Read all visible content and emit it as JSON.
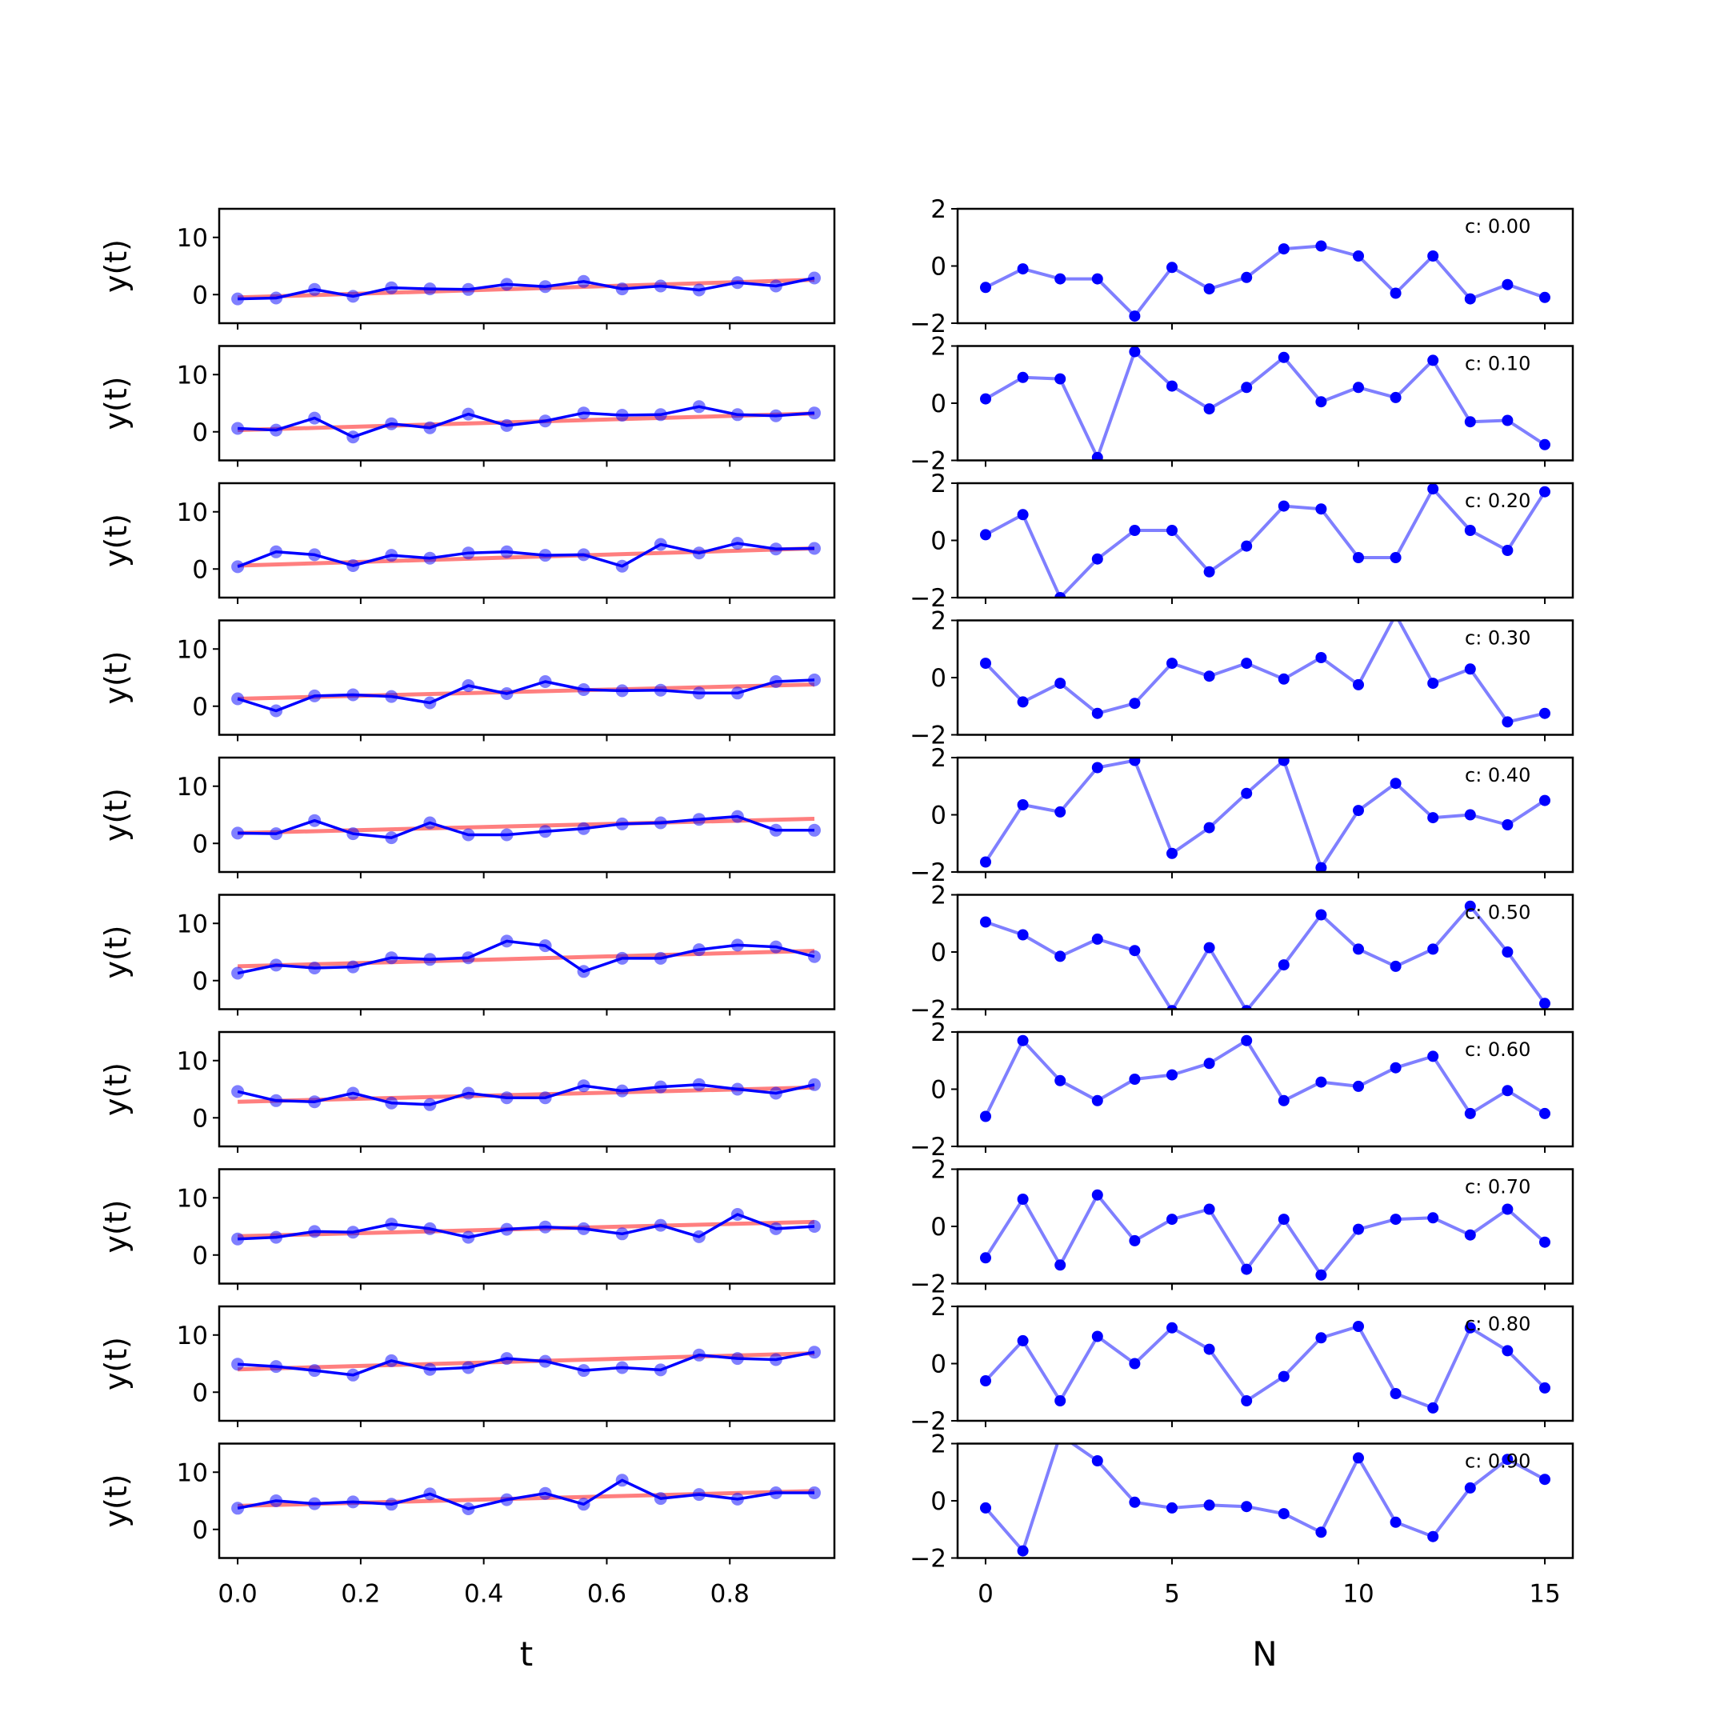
{
  "chart_data": [
    {
      "type": "line",
      "panel": "left",
      "xlabel": "t",
      "ylabel": "y(t)",
      "xlim": [
        -0.03,
        0.97
      ],
      "ylim": [
        -5,
        15
      ],
      "xticks": [
        0.0,
        0.2,
        0.4,
        0.6,
        0.8
      ],
      "xtick_labels": [
        "0.0",
        "0.2",
        "0.4",
        "0.6",
        "0.8"
      ],
      "yticks": [
        0,
        10
      ],
      "ytick_labels": [
        "0",
        "10"
      ],
      "x": [
        0.0,
        0.0625,
        0.125,
        0.1875,
        0.25,
        0.3125,
        0.375,
        0.4375,
        0.5,
        0.5625,
        0.625,
        0.6875,
        0.75,
        0.8125,
        0.875,
        0.9375
      ],
      "colors": {
        "data": "#0000ff",
        "fit": "#ff0000"
      },
      "series": [
        {
          "data": [
            -0.75,
            -0.6,
            0.9,
            -0.3,
            1.2,
            1.0,
            0.9,
            1.8,
            1.4,
            2.3,
            1.0,
            1.5,
            0.8,
            2.1,
            1.5,
            2.9
          ],
          "fit": [
            -0.5,
            2.6
          ]
        },
        {
          "data": [
            0.6,
            0.3,
            2.4,
            -0.9,
            1.4,
            0.7,
            3.1,
            1.1,
            1.9,
            3.3,
            2.9,
            3.0,
            4.4,
            3.0,
            2.8,
            3.3
          ],
          "fit": [
            0.3,
            3.2
          ]
        },
        {
          "data": [
            0.4,
            3.0,
            2.5,
            0.6,
            2.4,
            1.9,
            2.8,
            3.0,
            2.4,
            2.5,
            0.5,
            4.3,
            2.8,
            4.5,
            3.5,
            3.6
          ],
          "fit": [
            0.6,
            3.6
          ]
        },
        {
          "data": [
            1.3,
            -0.8,
            1.8,
            2.0,
            1.7,
            0.6,
            3.6,
            2.2,
            4.3,
            2.9,
            2.7,
            2.8,
            2.3,
            2.3,
            4.3,
            4.6
          ],
          "fit": [
            1.3,
            3.8
          ]
        },
        {
          "data": [
            1.8,
            1.7,
            4.0,
            1.7,
            1.0,
            3.6,
            1.5,
            1.5,
            2.1,
            2.6,
            3.4,
            3.6,
            4.2,
            4.7,
            2.3,
            2.3
          ],
          "fit": [
            1.8,
            4.3
          ]
        },
        {
          "data": [
            1.3,
            2.7,
            2.2,
            2.4,
            4.0,
            3.7,
            4.0,
            6.9,
            6.1,
            1.6,
            3.9,
            3.9,
            5.4,
            6.2,
            5.9,
            4.2
          ],
          "fit": [
            2.5,
            5.2
          ]
        },
        {
          "data": [
            4.6,
            3.0,
            2.8,
            4.3,
            2.6,
            2.3,
            4.3,
            3.5,
            3.5,
            5.6,
            4.7,
            5.4,
            5.8,
            5.0,
            4.3,
            5.8
          ],
          "fit": [
            2.8,
            5.3
          ]
        },
        {
          "data": [
            2.8,
            3.1,
            4.1,
            4.0,
            5.4,
            4.6,
            3.1,
            4.5,
            4.9,
            4.6,
            3.7,
            5.2,
            3.2,
            7.1,
            4.6,
            5.0
          ],
          "fit": [
            3.3,
            5.8
          ]
        },
        {
          "data": [
            4.9,
            4.5,
            3.8,
            3.0,
            5.5,
            4.0,
            4.3,
            5.9,
            5.4,
            3.8,
            4.3,
            3.9,
            6.5,
            5.9,
            5.7,
            7.0
          ],
          "fit": [
            4.0,
            6.8
          ]
        },
        {
          "data": [
            3.7,
            5.0,
            4.5,
            4.8,
            4.4,
            6.2,
            3.6,
            5.2,
            6.3,
            4.4,
            8.6,
            5.4,
            6.1,
            5.3,
            6.4,
            6.4
          ],
          "fit": [
            4.1,
            6.7
          ]
        }
      ]
    },
    {
      "type": "line",
      "panel": "right",
      "xlabel": "N",
      "ylabel": "",
      "xlim": [
        -0.75,
        15.75
      ],
      "ylim": [
        -2,
        2
      ],
      "xticks": [
        0,
        5,
        10,
        15
      ],
      "xtick_labels": [
        "0",
        "5",
        "10",
        "15"
      ],
      "yticks": [
        -2,
        0,
        2
      ],
      "ytick_labels": [
        "−2",
        "0",
        "2"
      ],
      "x": [
        0,
        1,
        2,
        3,
        4,
        5,
        6,
        7,
        8,
        9,
        10,
        11,
        12,
        13,
        14,
        15
      ],
      "colors": {
        "line": "#0000ff",
        "marker": "#0000ff"
      },
      "series": [
        {
          "annotation": "c: 0.00",
          "values": [
            -0.75,
            -0.1,
            -0.45,
            -0.45,
            -1.75,
            -0.05,
            -0.8,
            -0.4,
            0.6,
            0.7,
            0.35,
            -0.95,
            0.35,
            -1.15,
            -0.65,
            -1.1
          ]
        },
        {
          "annotation": "c: 0.10",
          "values": [
            0.15,
            0.9,
            0.85,
            -1.9,
            1.8,
            0.6,
            -0.2,
            0.55,
            1.6,
            0.05,
            0.55,
            0.2,
            1.5,
            -0.65,
            -0.6,
            -1.45
          ]
        },
        {
          "annotation": "c: 0.20",
          "values": [
            0.2,
            0.9,
            -2.0,
            -0.65,
            0.35,
            0.35,
            -1.1,
            -0.2,
            1.2,
            1.1,
            -0.6,
            -0.6,
            1.8,
            0.35,
            -0.35,
            1.7
          ]
        },
        {
          "annotation": "c: 0.30",
          "values": [
            0.5,
            -0.85,
            -0.2,
            -1.25,
            -0.9,
            0.5,
            0.05,
            0.5,
            -0.05,
            0.7,
            -0.25,
            2.2,
            -0.2,
            0.3,
            -1.55,
            -1.25
          ]
        },
        {
          "annotation": "c: 0.40",
          "values": [
            -1.65,
            0.35,
            0.1,
            1.65,
            1.9,
            -1.35,
            -0.45,
            0.75,
            1.9,
            -1.85,
            0.15,
            1.1,
            -0.1,
            0.0,
            -0.35,
            0.5
          ]
        },
        {
          "annotation": "c: 0.50",
          "values": [
            1.05,
            0.6,
            -0.15,
            0.45,
            0.05,
            -2.05,
            0.15,
            -2.05,
            -0.45,
            1.3,
            0.1,
            -0.5,
            0.1,
            1.6,
            0.0,
            -1.8
          ]
        },
        {
          "annotation": "c: 0.60",
          "values": [
            -0.95,
            1.7,
            0.3,
            -0.4,
            0.35,
            0.5,
            0.9,
            1.7,
            -0.4,
            0.25,
            0.1,
            0.75,
            1.15,
            -0.85,
            -0.05,
            -0.85
          ]
        },
        {
          "annotation": "c: 0.70",
          "values": [
            -1.1,
            0.95,
            -1.35,
            1.1,
            -0.5,
            0.25,
            0.6,
            -1.5,
            0.25,
            -1.7,
            -0.1,
            0.25,
            0.3,
            -0.3,
            0.6,
            -0.55
          ]
        },
        {
          "annotation": "c: 0.80",
          "values": [
            -0.6,
            0.8,
            -1.3,
            0.95,
            0.0,
            1.25,
            0.5,
            -1.3,
            -0.45,
            0.9,
            1.3,
            -1.05,
            -1.55,
            1.25,
            0.45,
            -0.85
          ]
        },
        {
          "annotation": "c: 0.90",
          "values": [
            -0.25,
            -1.75,
            2.3,
            1.4,
            -0.05,
            -0.25,
            -0.15,
            -0.2,
            -0.45,
            -1.1,
            1.5,
            -0.75,
            -1.25,
            0.45,
            1.45,
            0.75
          ]
        }
      ]
    }
  ]
}
